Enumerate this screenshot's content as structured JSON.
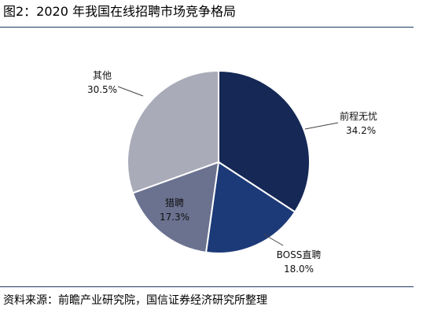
{
  "header": {
    "title": "图2：2020 年我国在线招聘市场竞争格局"
  },
  "footer": {
    "source": "资料来源：前瞻产业研究院，国信证券经济研究所整理"
  },
  "chart_data": {
    "type": "pie",
    "title": "图2：2020 年我国在线招聘市场竞争格局",
    "slices": [
      {
        "name": "前程无忧",
        "value": 34.2,
        "label": "34.2%",
        "color": "#152856"
      },
      {
        "name": "BOSS直聘",
        "value": 18.0,
        "label": "18.0%",
        "color": "#1d3a78"
      },
      {
        "name": "猎聘",
        "value": 17.3,
        "label": "17.3%",
        "color": "#6b7290"
      },
      {
        "name": "其他",
        "value": 30.5,
        "label": "30.5%",
        "color": "#a9abb9"
      }
    ],
    "start_angle_deg": 0,
    "direction": "clockwise"
  }
}
